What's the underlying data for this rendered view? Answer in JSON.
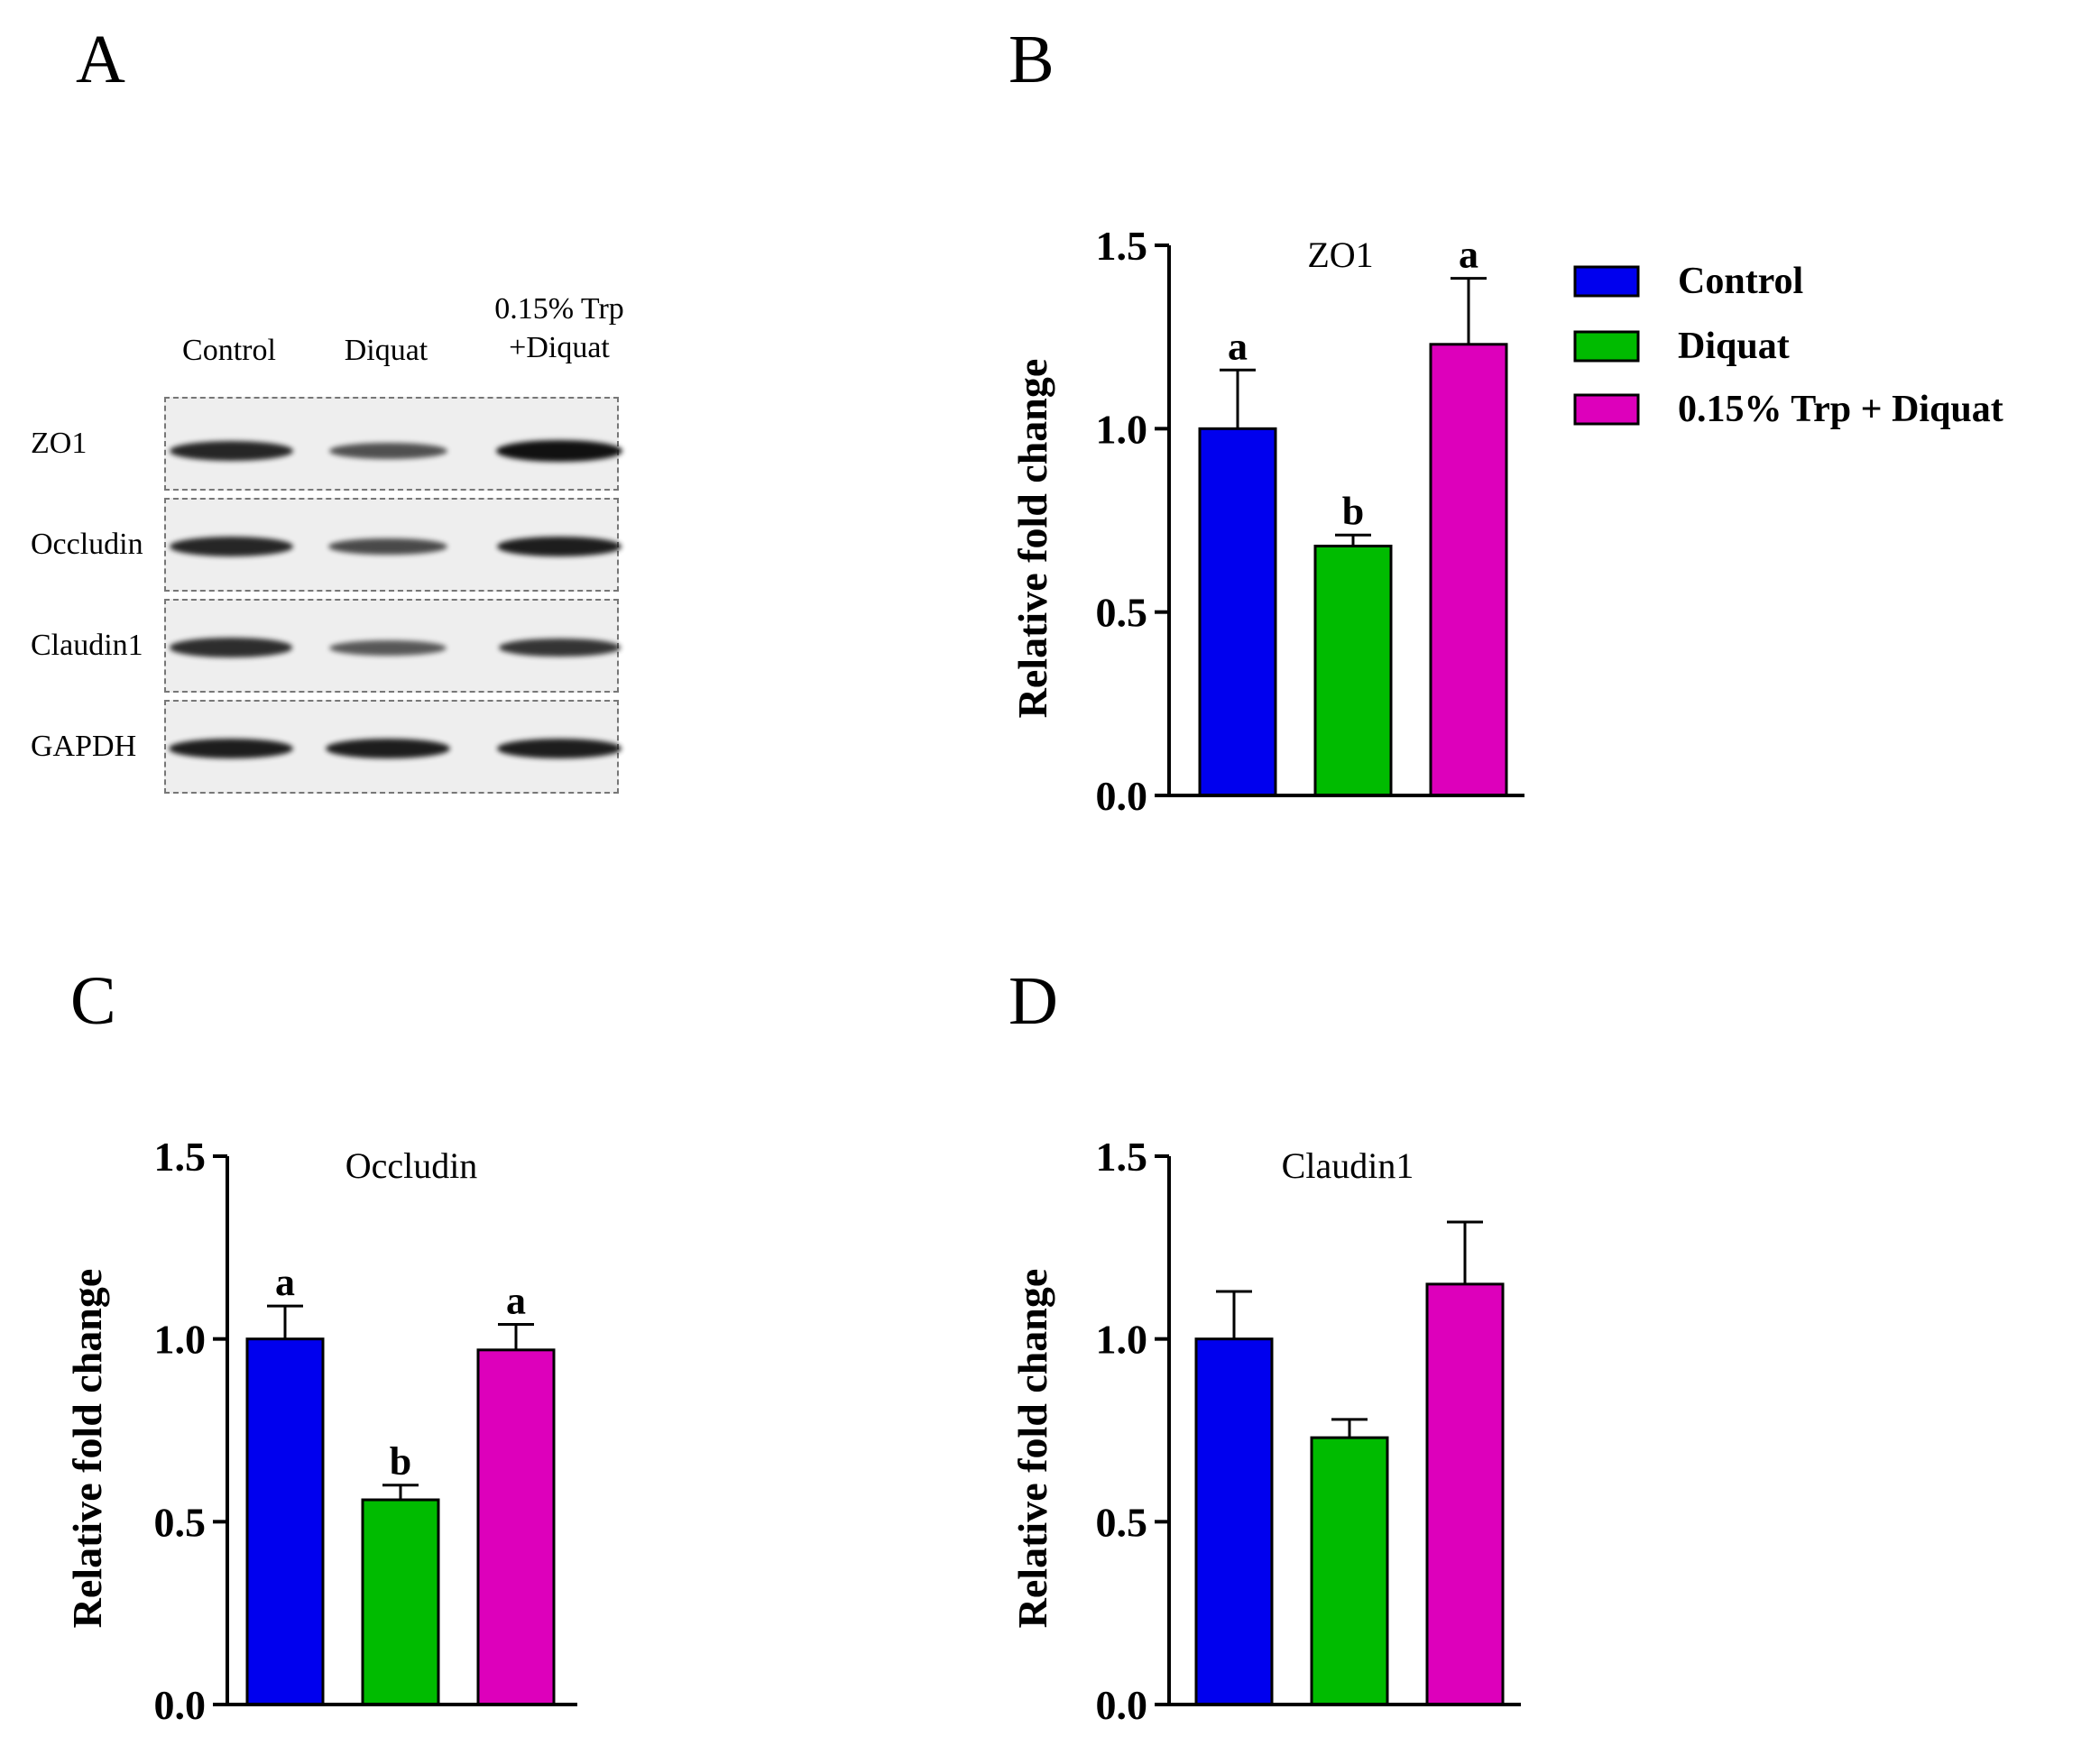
{
  "panels": {
    "A": "A",
    "B": "B",
    "C": "C",
    "D": "D"
  },
  "blot": {
    "lanes": [
      "Control",
      "Diquat",
      "0.15% Trp\n+Diquat"
    ],
    "lane_lines": [
      [
        "Control"
      ],
      [
        "Diquat"
      ],
      [
        "0.15% Trp",
        "+Diquat"
      ]
    ],
    "rows": [
      "ZO1",
      "Occludin",
      "Claudin1",
      "GAPDH"
    ],
    "band_intensity": [
      [
        0.85,
        0.55,
        1.0
      ],
      [
        0.85,
        0.6,
        0.9
      ],
      [
        0.8,
        0.5,
        0.75
      ],
      [
        0.9,
        0.9,
        0.9
      ]
    ]
  },
  "legend": {
    "items": [
      {
        "label": "Control",
        "color": "#0000ee"
      },
      {
        "label": "Diquat",
        "color": "#00bb00"
      },
      {
        "label": "0.15% Trp + Diquat",
        "color": "#dd00bb"
      }
    ]
  },
  "colors": {
    "control": "#0000ee",
    "diquat": "#00bb00",
    "trp": "#dd00bb"
  },
  "chart_data": [
    {
      "panel": "B",
      "type": "bar",
      "title": "ZO1",
      "ylabel": "Relative fold change",
      "xlabel": "",
      "categories": [
        "Control",
        "Diquat",
        "0.15% Trp + Diquat"
      ],
      "values": [
        1.0,
        0.68,
        1.23
      ],
      "errors": [
        0.16,
        0.03,
        0.18
      ],
      "significance": [
        "a",
        "b",
        "a"
      ],
      "ylim": [
        0,
        1.5
      ],
      "yticks": [
        "0.0",
        "0.5",
        "1.0",
        "1.5"
      ],
      "ytick_values": [
        0,
        0.5,
        1.0,
        1.5
      ]
    },
    {
      "panel": "C",
      "type": "bar",
      "title": "Occludin",
      "ylabel": "Relative fold change",
      "xlabel": "",
      "categories": [
        "Control",
        "Diquat",
        "0.15% Trp + Diquat"
      ],
      "values": [
        1.0,
        0.56,
        0.97
      ],
      "errors": [
        0.09,
        0.04,
        0.07
      ],
      "significance": [
        "a",
        "b",
        "a"
      ],
      "ylim": [
        0,
        1.5
      ],
      "yticks": [
        "0.0",
        "0.5",
        "1.0",
        "1.5"
      ],
      "ytick_values": [
        0,
        0.5,
        1.0,
        1.5
      ]
    },
    {
      "panel": "D",
      "type": "bar",
      "title": "Claudin1",
      "ylabel": "Relative fold change",
      "xlabel": "",
      "categories": [
        "Control",
        "Diquat",
        "0.15% Trp + Diquat"
      ],
      "values": [
        1.0,
        0.73,
        1.15
      ],
      "errors": [
        0.13,
        0.05,
        0.17
      ],
      "significance": [
        "",
        "",
        ""
      ],
      "ylim": [
        0,
        1.5
      ],
      "yticks": [
        "0.0",
        "0.5",
        "1.0",
        "1.5"
      ],
      "ytick_values": [
        0,
        0.5,
        1.0,
        1.5
      ]
    }
  ]
}
